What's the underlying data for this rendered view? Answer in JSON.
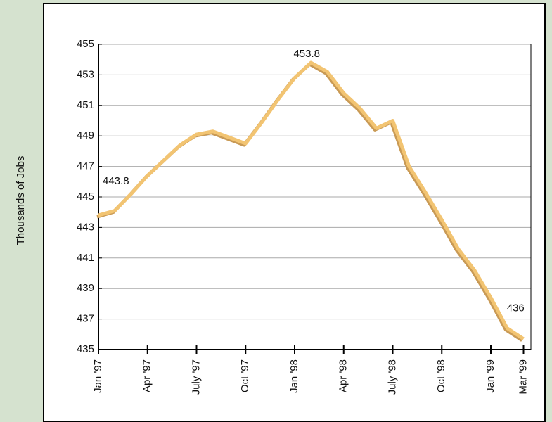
{
  "chart_data": {
    "type": "line",
    "y_label": "Thousands of Jobs",
    "categories": [
      "Jan '97",
      null,
      null,
      "Apr '97",
      null,
      null,
      "July '97",
      null,
      null,
      "Oct '97",
      null,
      null,
      "Jan '98",
      null,
      null,
      "Apr '98",
      null,
      null,
      "July '98",
      null,
      null,
      "Oct '98",
      null,
      null,
      "Jan '99",
      null,
      "Mar '99"
    ],
    "series": [
      {
        "color": "#f2c472",
        "values": [
          443.8,
          444.1,
          445.2,
          446.4,
          447.4,
          448.4,
          449.1,
          449.3,
          448.9,
          448.5,
          449.9,
          451.4,
          452.8,
          453.8,
          453.2,
          451.8,
          450.8,
          449.5,
          450.0,
          447.0,
          445.3,
          443.5,
          441.6,
          440.2,
          438.4,
          436.4,
          435.7
        ],
        "value_labels": [
          "443.8",
          null,
          null,
          null,
          null,
          null,
          null,
          null,
          null,
          null,
          null,
          null,
          null,
          "453.8",
          null,
          null,
          null,
          null,
          null,
          null,
          null,
          null,
          null,
          null,
          null,
          "436",
          null
        ]
      }
    ],
    "ylim": [
      435,
      455
    ],
    "yticks": [
      435,
      437,
      439,
      441,
      443,
      445,
      447,
      449,
      451,
      453,
      455
    ],
    "grid": true
  }
}
